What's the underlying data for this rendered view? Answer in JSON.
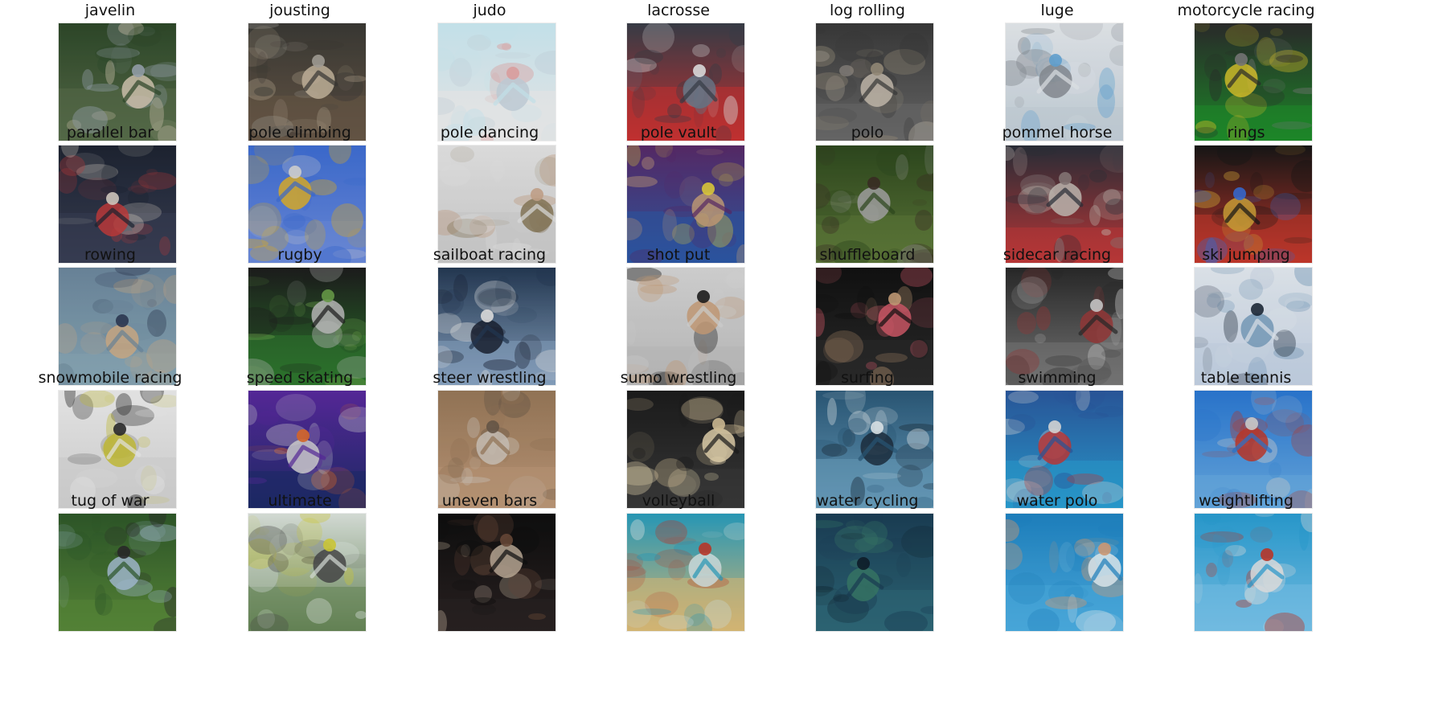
{
  "rows": [
    [
      {
        "label": "javelin",
        "palette": [
          "#2f4a2a",
          "#5a6f4c",
          "#9aa6b0",
          "#d6c9b4"
        ]
      },
      {
        "label": "jousting",
        "palette": [
          "#3b3a36",
          "#6a5a48",
          "#a7a39a",
          "#c8b8a0"
        ]
      },
      {
        "label": "judo",
        "palette": [
          "#cfeef7",
          "#f2f2f2",
          "#e7a7a7",
          "#c9d6e0"
        ]
      },
      {
        "label": "lacrosse",
        "palette": [
          "#3a3f4a",
          "#cc3333",
          "#e7e7e7",
          "#6b7a8c"
        ]
      },
      {
        "label": "log rolling",
        "palette": [
          "#3a3a3a",
          "#6b6b6b",
          "#9a8f7c",
          "#c9c0b2"
        ]
      },
      {
        "label": "luge",
        "palette": [
          "#e9edf1",
          "#c7d3dd",
          "#66a9d9",
          "#8a8f96"
        ]
      },
      {
        "label": "motorcycle racing",
        "palette": [
          "#2c2c2c",
          "#1f8f2b",
          "#7a7a7a",
          "#d9c32b"
        ]
      }
    ],
    [
      {
        "label": "parallel bar",
        "palette": [
          "#1e2533",
          "#3a3f56",
          "#d9d2c6",
          "#c43c3c"
        ]
      },
      {
        "label": "pole climbing",
        "palette": [
          "#3f6fd6",
          "#6e8ee0",
          "#d9d9d9",
          "#e0b12b"
        ]
      },
      {
        "label": "pole dancing",
        "palette": [
          "#e8e8e8",
          "#cfcfcf",
          "#caa88f",
          "#8a7a5a"
        ]
      },
      {
        "label": "pole vault",
        "palette": [
          "#5a2b6a",
          "#2d5aa8",
          "#e6d23c",
          "#c7a07a"
        ]
      },
      {
        "label": "polo",
        "palette": [
          "#2f4a1f",
          "#5f7a3a",
          "#3c2f26",
          "#a7a7a7"
        ]
      },
      {
        "label": "pommel horse",
        "palette": [
          "#2b2f3a",
          "#c23a3a",
          "#8a7a7a",
          "#c7c0b8"
        ]
      },
      {
        "label": "rings",
        "palette": [
          "#171717",
          "#c83a2d",
          "#3a6dd6",
          "#d2a43a"
        ]
      }
    ],
    [
      {
        "label": "rowing",
        "palette": [
          "#6e8aa0",
          "#8aa9b8",
          "#2f3a55",
          "#d2b08a"
        ]
      },
      {
        "label": "rugby",
        "palette": [
          "#1d1d1d",
          "#2f7a2f",
          "#6aa04a",
          "#c0c0c0"
        ]
      },
      {
        "label": "sailboat racing",
        "palette": [
          "#253a55",
          "#8aa6c4",
          "#e7e7e7",
          "#1b2233"
        ]
      },
      {
        "label": "shot put",
        "palette": [
          "#d9d9d9",
          "#bfbfbf",
          "#1e1e1e",
          "#caa07a"
        ]
      },
      {
        "label": "shuffleboard",
        "palette": [
          "#121212",
          "#2b2b2b",
          "#c9a07a",
          "#d35a6a"
        ]
      },
      {
        "label": "sidecar racing",
        "palette": [
          "#2a2a2a",
          "#7a7a7a",
          "#d0d0d0",
          "#9a3a3a"
        ]
      },
      {
        "label": "ski jumping",
        "palette": [
          "#e8eef5",
          "#c7d6e8",
          "#1e2a3a",
          "#7aa0c0"
        ]
      }
    ],
    [
      {
        "label": "snowmobile racing",
        "palette": [
          "#f0f0f0",
          "#d6d6d6",
          "#2b2b2b",
          "#c9c23a"
        ]
      },
      {
        "label": "speed skating",
        "palette": [
          "#5a2aa0",
          "#1e2b6a",
          "#e06a2b",
          "#d6d6d6"
        ]
      },
      {
        "label": "steer wrestling",
        "palette": [
          "#9a7a5a",
          "#c09a7a",
          "#6a5a4a",
          "#d0c8bd"
        ]
      },
      {
        "label": "sumo wrestling",
        "palette": [
          "#1c1c1c",
          "#3a3a3a",
          "#d7c39a",
          "#e6d6b0"
        ]
      },
      {
        "label": "surfing",
        "palette": [
          "#2b5a7a",
          "#6aa0c0",
          "#e6eef2",
          "#1d2f3f"
        ]
      },
      {
        "label": "swimming",
        "palette": [
          "#2b5aa0",
          "#2aa0d6",
          "#e0e0e0",
          "#c23a3a"
        ]
      },
      {
        "label": "table tennis",
        "palette": [
          "#2b7ad6",
          "#6aaee6",
          "#d6d6d6",
          "#c23a2b"
        ]
      }
    ],
    [
      {
        "label": "tug of war",
        "palette": [
          "#2f5a2a",
          "#5a8a3a",
          "#2b2b2b",
          "#a7c0d6"
        ]
      },
      {
        "label": "ultimate",
        "palette": [
          "#dfe7e0",
          "#6a8a5a",
          "#d6d23a",
          "#4a4a4a"
        ]
      },
      {
        "label": "uneven bars",
        "palette": [
          "#0f0f0f",
          "#2a2222",
          "#6a4a3a",
          "#bfae9a"
        ]
      },
      {
        "label": "volleyball",
        "palette": [
          "#2aa0c0",
          "#e0c07a",
          "#c23a2b",
          "#d6e6e6"
        ]
      },
      {
        "label": "water cycling",
        "palette": [
          "#1b3f57",
          "#2f6a7a",
          "#0f1f2b",
          "#3a7a6a"
        ]
      },
      {
        "label": "water polo",
        "palette": [
          "#1f86c6",
          "#4db0e6",
          "#d6a07a",
          "#e6f2f7"
        ]
      },
      {
        "label": "weightlifting",
        "palette": [
          "#2aa0d6",
          "#78c6ee",
          "#c23a2b",
          "#e8e8e8"
        ]
      }
    ]
  ]
}
